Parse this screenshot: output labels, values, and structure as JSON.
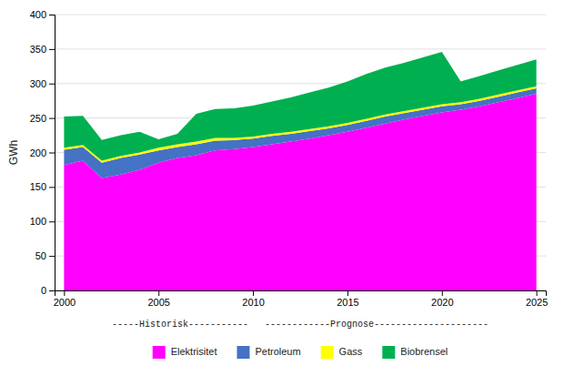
{
  "chart_data": {
    "type": "area",
    "stacked": true,
    "x": [
      2000,
      2001,
      2002,
      2003,
      2004,
      2005,
      2006,
      2007,
      2008,
      2009,
      2010,
      2011,
      2012,
      2013,
      2014,
      2015,
      2016,
      2017,
      2018,
      2019,
      2020,
      2021,
      2022,
      2023,
      2024,
      2025
    ],
    "series": [
      {
        "name": "Elektrisitet",
        "color": "#FF00FF",
        "values": [
          182,
          188,
          163,
          168,
          175,
          185,
          192,
          196,
          203,
          205,
          208,
          212,
          216,
          220,
          225,
          230,
          236,
          242,
          248,
          253,
          258,
          262,
          267,
          273,
          279,
          285
        ]
      },
      {
        "name": "Petroleum",
        "color": "#4472C4",
        "values": [
          22,
          20,
          22,
          24,
          22,
          18,
          16,
          16,
          14,
          13,
          12,
          12,
          11,
          11,
          10,
          10,
          10,
          10,
          9,
          9,
          9,
          8,
          8,
          8,
          8,
          8
        ]
      },
      {
        "name": "Gass",
        "color": "#FFFF00",
        "values": [
          3,
          3,
          3,
          3,
          3,
          4,
          4,
          4,
          4,
          3,
          3,
          3,
          3,
          3,
          3,
          3,
          3,
          3,
          3,
          3,
          3,
          3,
          3,
          3,
          3,
          3
        ]
      },
      {
        "name": "Biobrensel",
        "color": "#00B050",
        "values": [
          45,
          42,
          30,
          30,
          30,
          12,
          15,
          40,
          42,
          43,
          45,
          47,
          50,
          53,
          56,
          60,
          65,
          68,
          70,
          73,
          76,
          30,
          33,
          35,
          37,
          39
        ]
      }
    ],
    "y_label": "GWh",
    "ylim": [
      0,
      400
    ],
    "yticks": [
      0,
      50,
      100,
      150,
      200,
      250,
      300,
      350,
      400
    ],
    "xlim": [
      1999.5,
      2025.5
    ],
    "xticks": [
      2000,
      2005,
      2010,
      2015,
      2020,
      2025
    ],
    "grid": true,
    "legend": "bottom",
    "annotations": [
      "-----Historisk-----------   ------------Prognose---------------------"
    ]
  }
}
